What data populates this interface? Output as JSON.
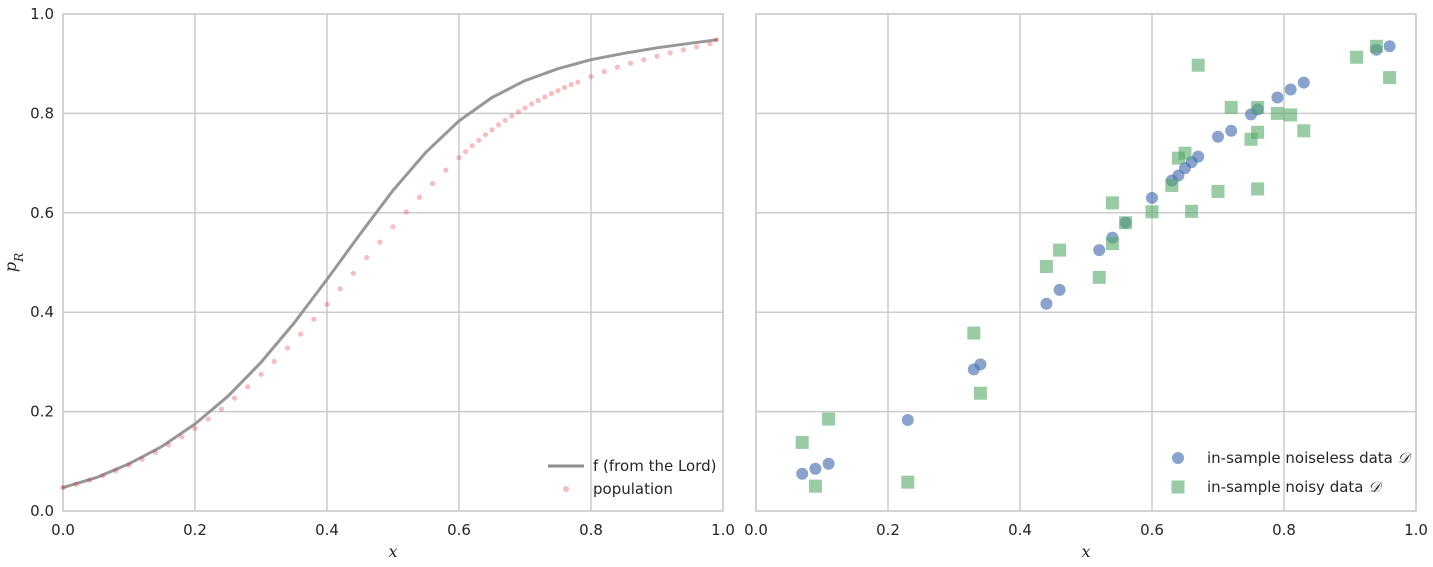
{
  "chart_data": [
    {
      "type": "line",
      "xlabel": "x",
      "ylabel": "p",
      "ylabel_sub": "R",
      "xlim": [
        0.0,
        1.0
      ],
      "ylim": [
        0.0,
        1.0
      ],
      "xticks": [
        "0.0",
        "0.2",
        "0.4",
        "0.6",
        "0.8",
        "1.0"
      ],
      "yticks": [
        "0.0",
        "0.2",
        "0.4",
        "0.6",
        "0.8",
        "1.0"
      ],
      "grid": true,
      "legend_position": "lower-right",
      "series": [
        {
          "name": "f (from the Lord)",
          "kind": "line",
          "color": "#8c8c8c",
          "x": [
            0.0,
            0.05,
            0.1,
            0.15,
            0.2,
            0.25,
            0.3,
            0.35,
            0.4,
            0.45,
            0.5,
            0.55,
            0.6,
            0.65,
            0.7,
            0.75,
            0.8,
            0.85,
            0.9,
            0.95,
            0.99
          ],
          "y": [
            0.047,
            0.067,
            0.095,
            0.13,
            0.175,
            0.231,
            0.299,
            0.378,
            0.466,
            0.557,
            0.645,
            0.722,
            0.785,
            0.832,
            0.866,
            0.89,
            0.908,
            0.921,
            0.932,
            0.941,
            0.948
          ]
        },
        {
          "name": "population",
          "kind": "scatter",
          "color": "#e8252a",
          "x": [
            0.0,
            0.02,
            0.04,
            0.06,
            0.08,
            0.1,
            0.12,
            0.14,
            0.16,
            0.18,
            0.2,
            0.22,
            0.24,
            0.26,
            0.28,
            0.3,
            0.32,
            0.34,
            0.36,
            0.38,
            0.4,
            0.42,
            0.44,
            0.46,
            0.48,
            0.5,
            0.52,
            0.54,
            0.56,
            0.58,
            0.6,
            0.61,
            0.62,
            0.63,
            0.64,
            0.65,
            0.66,
            0.67,
            0.68,
            0.69,
            0.7,
            0.71,
            0.72,
            0.73,
            0.74,
            0.75,
            0.76,
            0.77,
            0.78,
            0.8,
            0.82,
            0.84,
            0.86,
            0.88,
            0.9,
            0.92,
            0.94,
            0.96,
            0.98,
            0.99
          ],
          "y": [
            0.047,
            0.054,
            0.062,
            0.071,
            0.081,
            0.092,
            0.104,
            0.118,
            0.133,
            0.149,
            0.166,
            0.185,
            0.205,
            0.227,
            0.25,
            0.275,
            0.301,
            0.328,
            0.356,
            0.386,
            0.416,
            0.447,
            0.478,
            0.51,
            0.541,
            0.572,
            0.602,
            0.631,
            0.659,
            0.686,
            0.711,
            0.723,
            0.735,
            0.746,
            0.757,
            0.767,
            0.777,
            0.786,
            0.795,
            0.803,
            0.811,
            0.819,
            0.826,
            0.833,
            0.84,
            0.846,
            0.852,
            0.858,
            0.863,
            0.874,
            0.884,
            0.893,
            0.901,
            0.908,
            0.915,
            0.922,
            0.928,
            0.934,
            0.94,
            0.948
          ]
        }
      ]
    },
    {
      "type": "scatter",
      "xlabel": "x",
      "xlim": [
        0.0,
        1.0
      ],
      "ylim": [
        0.0,
        1.0
      ],
      "xticks": [
        "0.0",
        "0.2",
        "0.4",
        "0.6",
        "0.8",
        "1.0"
      ],
      "grid": true,
      "shared_y": true,
      "legend_position": "lower-right",
      "series": [
        {
          "name": "in-sample noiseless data",
          "name_math": "𝒟",
          "marker": "circle",
          "color": "#4c72b0",
          "x": [
            0.07,
            0.09,
            0.11,
            0.23,
            0.33,
            0.34,
            0.44,
            0.46,
            0.52,
            0.54,
            0.56,
            0.6,
            0.63,
            0.64,
            0.65,
            0.66,
            0.67,
            0.7,
            0.72,
            0.75,
            0.76,
            0.79,
            0.81,
            0.83,
            0.94,
            0.96
          ],
          "y": [
            0.075,
            0.085,
            0.095,
            0.183,
            0.285,
            0.295,
            0.417,
            0.445,
            0.525,
            0.55,
            0.58,
            0.63,
            0.665,
            0.675,
            0.69,
            0.702,
            0.713,
            0.753,
            0.765,
            0.798,
            0.808,
            0.832,
            0.848,
            0.862,
            0.928,
            0.935
          ]
        },
        {
          "name": "in-sample noisy data",
          "name_math": "𝒟",
          "marker": "square",
          "color": "#55a868",
          "x": [
            0.07,
            0.09,
            0.11,
            0.23,
            0.33,
            0.34,
            0.44,
            0.46,
            0.52,
            0.54,
            0.54,
            0.56,
            0.6,
            0.63,
            0.64,
            0.65,
            0.66,
            0.67,
            0.7,
            0.72,
            0.75,
            0.76,
            0.76,
            0.76,
            0.79,
            0.81,
            0.83,
            0.91,
            0.94,
            0.96
          ],
          "y": [
            0.138,
            0.05,
            0.185,
            0.058,
            0.358,
            0.237,
            0.492,
            0.525,
            0.47,
            0.62,
            0.538,
            0.58,
            0.602,
            0.655,
            0.71,
            0.72,
            0.603,
            0.897,
            0.643,
            0.812,
            0.748,
            0.812,
            0.762,
            0.648,
            0.8,
            0.797,
            0.765,
            0.913,
            0.935,
            0.872
          ]
        }
      ]
    }
  ]
}
